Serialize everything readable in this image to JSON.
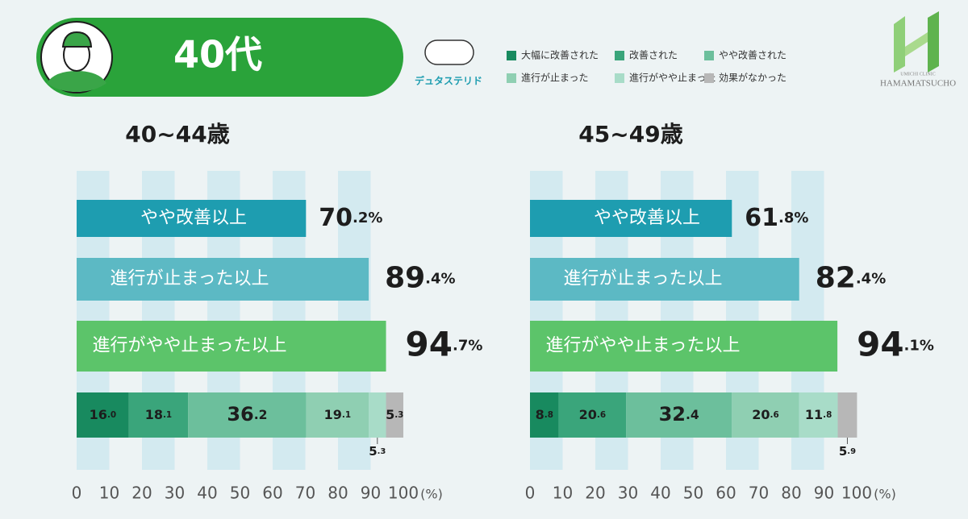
{
  "header": {
    "title": "40代",
    "drug": "デュタステリド"
  },
  "logo": {
    "line1": "UMICHI CLINIC",
    "line2": "HAMAMATSUCHO"
  },
  "legend": [
    {
      "name": "大幅に改善された",
      "color": "#188a5f"
    },
    {
      "name": "改善された",
      "color": "#3aa57b"
    },
    {
      "name": "やや改善された",
      "color": "#6cbf9c"
    },
    {
      "name": "進行が止まった",
      "color": "#8fcfb2"
    },
    {
      "name": "進行がやや止まった",
      "color": "#a8dcc8"
    },
    {
      "name": "効果がなかった",
      "color": "#b7b7b7"
    }
  ],
  "chart_data": [
    {
      "type": "bar",
      "title": "40~44歳",
      "categories": [
        "やや改善以上",
        "進行が止まった以上",
        "進行がやや止まった以上"
      ],
      "values": [
        70.2,
        89.4,
        94.7
      ],
      "value_labels": [
        "70.2%",
        "89.4%",
        "94.7%"
      ],
      "colors": [
        "#1e9db0",
        "#5cb9c4",
        "#5cc46a"
      ],
      "breakdown": {
        "type": "stacked_bar",
        "series": [
          {
            "values": [
              16.0
            ],
            "value_labels": [
              "16.0"
            ]
          },
          {
            "values": [
              18.1
            ],
            "value_labels": [
              "18.1"
            ]
          },
          {
            "values": [
              36.2
            ],
            "value_labels": [
              "36.2"
            ]
          },
          {
            "values": [
              19.1
            ],
            "value_labels": [
              "19.1"
            ]
          },
          {
            "values": [
              5.3
            ],
            "value_labels": [
              "5.3"
            ]
          },
          {
            "values": [
              5.3
            ],
            "value_labels": [
              "5.3"
            ]
          }
        ]
      },
      "xlim": [
        0,
        100
      ],
      "xticks": [
        0,
        10,
        20,
        30,
        40,
        50,
        60,
        70,
        80,
        90,
        100
      ],
      "xlabel": "(%)",
      "grid": true
    },
    {
      "type": "bar",
      "title": "45~49歳",
      "categories": [
        "やや改善以上",
        "進行が止まった以上",
        "進行がやや止まった以上"
      ],
      "values": [
        61.8,
        82.4,
        94.1
      ],
      "value_labels": [
        "61.8%",
        "82.4%",
        "94.1%"
      ],
      "colors": [
        "#1e9db0",
        "#5cb9c4",
        "#5cc46a"
      ],
      "breakdown": {
        "type": "stacked_bar",
        "series": [
          {
            "values": [
              8.8
            ],
            "value_labels": [
              "8.8"
            ]
          },
          {
            "values": [
              20.6
            ],
            "value_labels": [
              "20.6"
            ]
          },
          {
            "values": [
              32.4
            ],
            "value_labels": [
              "32.4"
            ]
          },
          {
            "values": [
              20.6
            ],
            "value_labels": [
              "20.6"
            ]
          },
          {
            "values": [
              11.8
            ],
            "value_labels": [
              "11.8"
            ]
          },
          {
            "values": [
              5.9
            ],
            "value_labels": [
              "5.9"
            ]
          }
        ]
      },
      "xlim": [
        0,
        100
      ],
      "xticks": [
        0,
        10,
        20,
        30,
        40,
        50,
        60,
        70,
        80,
        90,
        100
      ],
      "xlabel": "(%)",
      "grid": true
    }
  ]
}
